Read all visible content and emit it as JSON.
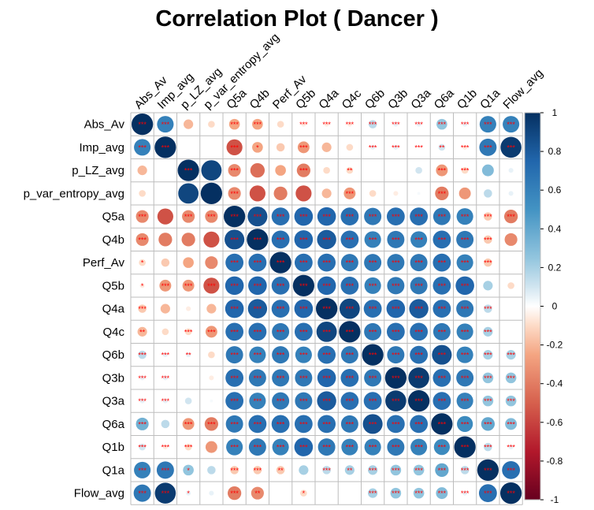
{
  "chart_data": {
    "type": "heatmap",
    "title": "Correlation Plot ( Dancer )",
    "variables": [
      "Abs_Av",
      "Imp_avg",
      "p_LZ_avg",
      "p_var_entropy_avg",
      "Q5a",
      "Q4b",
      "Perf_Av",
      "Q5b",
      "Q4a",
      "Q4c",
      "Q6b",
      "Q3b",
      "Q3a",
      "Q6a",
      "Q1b",
      "Q1a",
      "Flow_avg"
    ],
    "correlation": [
      [
        1.0,
        0.6,
        -0.2,
        -0.1,
        -0.25,
        -0.25,
        -0.1,
        -0.05,
        -0.05,
        -0.05,
        0.15,
        0.05,
        0.05,
        0.25,
        0.05,
        0.6,
        0.6
      ],
      [
        0.6,
        1.0,
        0.0,
        0.0,
        -0.55,
        -0.25,
        -0.15,
        -0.3,
        -0.2,
        -0.1,
        0.05,
        0.05,
        0.0,
        0.1,
        -0.05,
        0.65,
        0.95
      ],
      [
        -0.2,
        0.0,
        1.0,
        0.9,
        -0.35,
        -0.45,
        -0.25,
        -0.4,
        -0.1,
        -0.1,
        0.0,
        0.0,
        0.1,
        -0.3,
        -0.1,
        0.3,
        0.05
      ],
      [
        -0.1,
        0.0,
        0.9,
        1.0,
        -0.35,
        -0.55,
        -0.4,
        -0.55,
        -0.2,
        -0.3,
        -0.1,
        -0.05,
        0.02,
        -0.4,
        -0.3,
        0.15,
        0.05
      ],
      [
        -0.35,
        -0.55,
        -0.35,
        -0.35,
        1.0,
        0.85,
        0.7,
        0.75,
        0.75,
        0.7,
        0.65,
        0.7,
        0.7,
        0.65,
        0.6,
        -0.15,
        -0.4
      ],
      [
        -0.35,
        -0.4,
        -0.4,
        -0.55,
        0.85,
        1.0,
        0.7,
        0.75,
        0.8,
        0.7,
        0.6,
        0.65,
        0.6,
        0.7,
        0.65,
        -0.15,
        -0.35
      ],
      [
        -0.1,
        -0.15,
        -0.25,
        -0.35,
        0.7,
        0.7,
        1.0,
        0.7,
        0.7,
        0.65,
        0.65,
        0.65,
        0.65,
        0.7,
        0.6,
        -0.15,
        0.0
      ],
      [
        -0.05,
        -0.3,
        -0.3,
        -0.55,
        0.75,
        0.75,
        0.7,
        1.0,
        0.75,
        0.7,
        0.6,
        0.65,
        0.65,
        0.7,
        0.75,
        0.2,
        -0.1
      ],
      [
        -0.15,
        -0.2,
        -0.05,
        -0.2,
        0.75,
        0.8,
        0.7,
        0.75,
        1.0,
        0.9,
        0.7,
        0.75,
        0.8,
        0.7,
        0.65,
        0.15,
        0.0
      ],
      [
        -0.2,
        -0.1,
        -0.1,
        -0.3,
        0.7,
        0.7,
        0.65,
        0.7,
        0.9,
        1.0,
        0.65,
        0.7,
        0.7,
        0.65,
        0.6,
        0.2,
        0.0
      ],
      [
        0.15,
        0.05,
        0.05,
        -0.1,
        0.65,
        0.6,
        0.65,
        0.6,
        0.7,
        0.65,
        1.0,
        0.65,
        0.7,
        0.85,
        0.6,
        0.2,
        0.2
      ],
      [
        0.05,
        0.05,
        0.0,
        -0.05,
        0.7,
        0.65,
        0.65,
        0.65,
        0.75,
        0.7,
        0.65,
        1.0,
        0.95,
        0.7,
        0.65,
        0.25,
        0.25
      ],
      [
        0.05,
        0.05,
        0.1,
        0.02,
        0.7,
        0.6,
        0.65,
        0.65,
        0.8,
        0.7,
        0.7,
        0.95,
        1.0,
        0.7,
        0.6,
        0.25,
        0.25
      ],
      [
        0.35,
        0.15,
        -0.3,
        -0.4,
        0.65,
        0.7,
        0.7,
        0.7,
        0.7,
        0.65,
        0.85,
        0.7,
        0.7,
        1.0,
        0.55,
        0.4,
        0.3
      ],
      [
        0.1,
        -0.05,
        -0.1,
        -0.3,
        0.6,
        0.65,
        0.6,
        0.75,
        0.65,
        0.6,
        0.6,
        0.65,
        0.6,
        0.55,
        1.0,
        0.15,
        0.05
      ],
      [
        0.6,
        0.65,
        0.25,
        0.15,
        -0.15,
        -0.15,
        -0.15,
        0.2,
        0.15,
        0.2,
        0.2,
        0.25,
        0.25,
        0.4,
        0.15,
        1.0,
        0.7
      ],
      [
        0.65,
        0.95,
        0.05,
        0.05,
        -0.4,
        -0.35,
        0.0,
        -0.1,
        0.0,
        0.0,
        0.2,
        0.25,
        0.25,
        0.3,
        0.05,
        0.7,
        1.0
      ]
    ],
    "significance": [
      [
        "***",
        "***",
        "",
        "",
        "***",
        "***",
        "",
        "***",
        "***",
        "***",
        "***",
        "***",
        "***",
        "***",
        "***",
        "***",
        "***"
      ],
      [
        "***",
        "***",
        "",
        "",
        "***",
        "*",
        "",
        "***",
        "",
        "",
        "***",
        "***",
        "***",
        "**",
        "***",
        "***",
        "***"
      ],
      [
        "",
        "",
        "***",
        "",
        "***",
        "",
        "",
        "***",
        "",
        "**",
        "",
        "",
        "",
        "***",
        "***",
        "",
        ""
      ],
      [
        "",
        "",
        "",
        "",
        "***",
        "",
        "",
        "",
        "",
        "***",
        "",
        "",
        "",
        "***",
        "",
        "",
        ""
      ],
      [
        "***",
        "",
        "***",
        "***",
        "***",
        "***",
        "***",
        "***",
        "***",
        "***",
        "***",
        "***",
        "***",
        "***",
        "***",
        "***",
        "***"
      ],
      [
        "***",
        "",
        "",
        "",
        "***",
        "***",
        "***",
        "***",
        "***",
        "***",
        "***",
        "***",
        "***",
        "***",
        "***",
        "***",
        ""
      ],
      [
        "*",
        "",
        "",
        "",
        "***",
        "***",
        "***",
        "***",
        "***",
        "***",
        "***",
        "***",
        "***",
        "***",
        "***",
        "***",
        ""
      ],
      [
        "*",
        "***",
        "***",
        "***",
        "***",
        "***",
        "***",
        "***",
        "***",
        "***",
        "***",
        "***",
        "***",
        "***",
        "***",
        "",
        ""
      ],
      [
        "***",
        "",
        "",
        "",
        "***",
        "***",
        "***",
        "***",
        "***",
        "***",
        "***",
        "***",
        "***",
        "***",
        "***",
        "***",
        ""
      ],
      [
        "**",
        "",
        "***",
        "***",
        "***",
        "***",
        "***",
        "***",
        "***",
        "***",
        "***",
        "***",
        "***",
        "***",
        "***",
        "***",
        ""
      ],
      [
        "***",
        "***",
        "**",
        "",
        "***",
        "***",
        "***",
        "***",
        "***",
        "***",
        "***",
        "***",
        "***",
        "***",
        "***",
        "***",
        "***"
      ],
      [
        "***",
        "***",
        "",
        "",
        "***",
        "***",
        "***",
        "***",
        "***",
        "***",
        "***",
        "***",
        "***",
        "***",
        "***",
        "***",
        "***"
      ],
      [
        "***",
        "***",
        "",
        "",
        "***",
        "***",
        "***",
        "***",
        "***",
        "***",
        "***",
        "***",
        "***",
        "***",
        "***",
        "***",
        "***"
      ],
      [
        "***",
        "",
        "***",
        "***",
        "***",
        "***",
        "***",
        "***",
        "***",
        "***",
        "***",
        "***",
        "***",
        "***",
        "***",
        "***",
        "***"
      ],
      [
        "***",
        "***",
        "***",
        "",
        "***",
        "***",
        "***",
        "***",
        "***",
        "***",
        "***",
        "***",
        "***",
        "***",
        "***",
        "***",
        "***"
      ],
      [
        "***",
        "***",
        "*",
        "",
        "***",
        "***",
        "**",
        "",
        "***",
        "**",
        "***",
        "***",
        "***",
        "***",
        "***",
        "***",
        "***"
      ],
      [
        "***",
        "***",
        "*",
        "",
        "***",
        "**",
        "",
        "*",
        "",
        "",
        "***",
        "***",
        "***",
        "***",
        "***",
        "***",
        "***"
      ]
    ],
    "color_scale": {
      "min": -1,
      "max": 1,
      "stops": [
        {
          "v": -1.0,
          "c": "#67001f"
        },
        {
          "v": -0.75,
          "c": "#b2182b"
        },
        {
          "v": -0.5,
          "c": "#d6604d"
        },
        {
          "v": -0.25,
          "c": "#f4a582"
        },
        {
          "v": -0.1,
          "c": "#fddbc7"
        },
        {
          "v": 0.0,
          "c": "#ffffff"
        },
        {
          "v": 0.1,
          "c": "#d1e5f0"
        },
        {
          "v": 0.25,
          "c": "#92c5de"
        },
        {
          "v": 0.5,
          "c": "#4393c3"
        },
        {
          "v": 0.75,
          "c": "#2166ac"
        },
        {
          "v": 1.0,
          "c": "#053061"
        }
      ]
    },
    "colorbar_ticks": [
      "1",
      "0.8",
      "0.6",
      "0.4",
      "0.2",
      "0",
      "-0.2",
      "-0.4",
      "-0.6",
      "-0.8",
      "-1"
    ],
    "grid": true,
    "legend_position": "right",
    "star_color": "#ff0000"
  }
}
